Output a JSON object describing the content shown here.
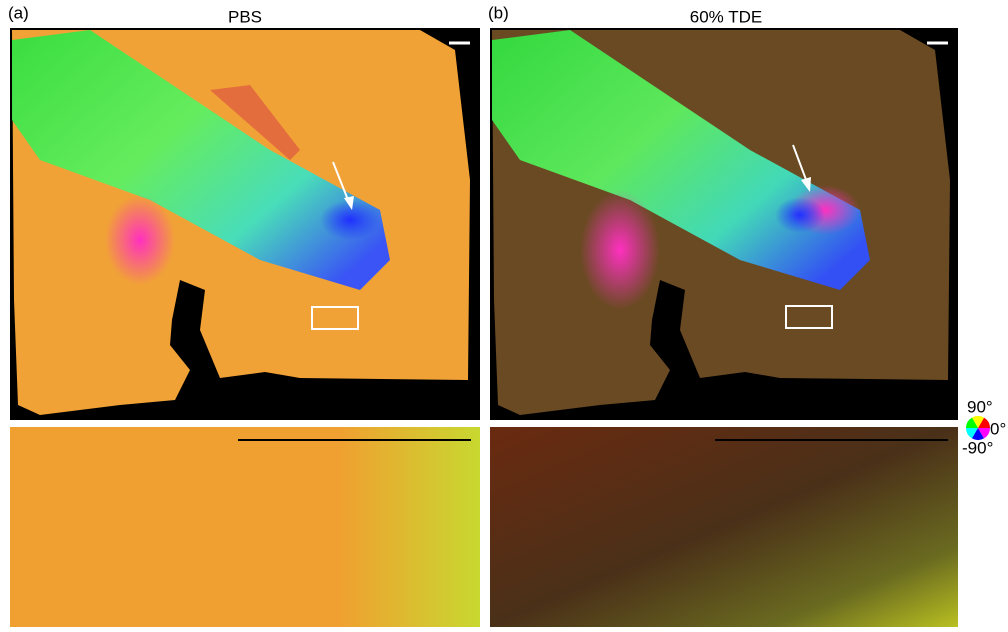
{
  "panels": [
    {
      "label": "(a)",
      "title": "PBS"
    },
    {
      "label": "(b)",
      "title": "60% TDE"
    }
  ],
  "legend": {
    "top": "90°",
    "middle": "0°",
    "bottom": "-90°"
  }
}
